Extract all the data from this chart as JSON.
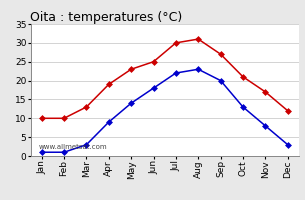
{
  "title": "Oita : temperatures (°C)",
  "months": [
    "Jan",
    "Feb",
    "Mar",
    "Apr",
    "May",
    "Jun",
    "Jul",
    "Aug",
    "Sep",
    "Oct",
    "Nov",
    "Dec"
  ],
  "max_temps": [
    10,
    10,
    13,
    19,
    23,
    25,
    30,
    31,
    27,
    21,
    17,
    12
  ],
  "min_temps": [
    1,
    1,
    3,
    9,
    14,
    18,
    22,
    23,
    20,
    13,
    8,
    3
  ],
  "max_color": "#cc0000",
  "min_color": "#0000cc",
  "background_color": "#e8e8e8",
  "plot_bg_color": "#ffffff",
  "ylim": [
    0,
    35
  ],
  "yticks": [
    0,
    5,
    10,
    15,
    20,
    25,
    30,
    35
  ],
  "grid_color": "#cccccc",
  "watermark": "www.allmetsat.com",
  "title_fontsize": 9,
  "label_fontsize": 6.5,
  "marker": "D",
  "markersize": 3.0,
  "linewidth": 1.1
}
